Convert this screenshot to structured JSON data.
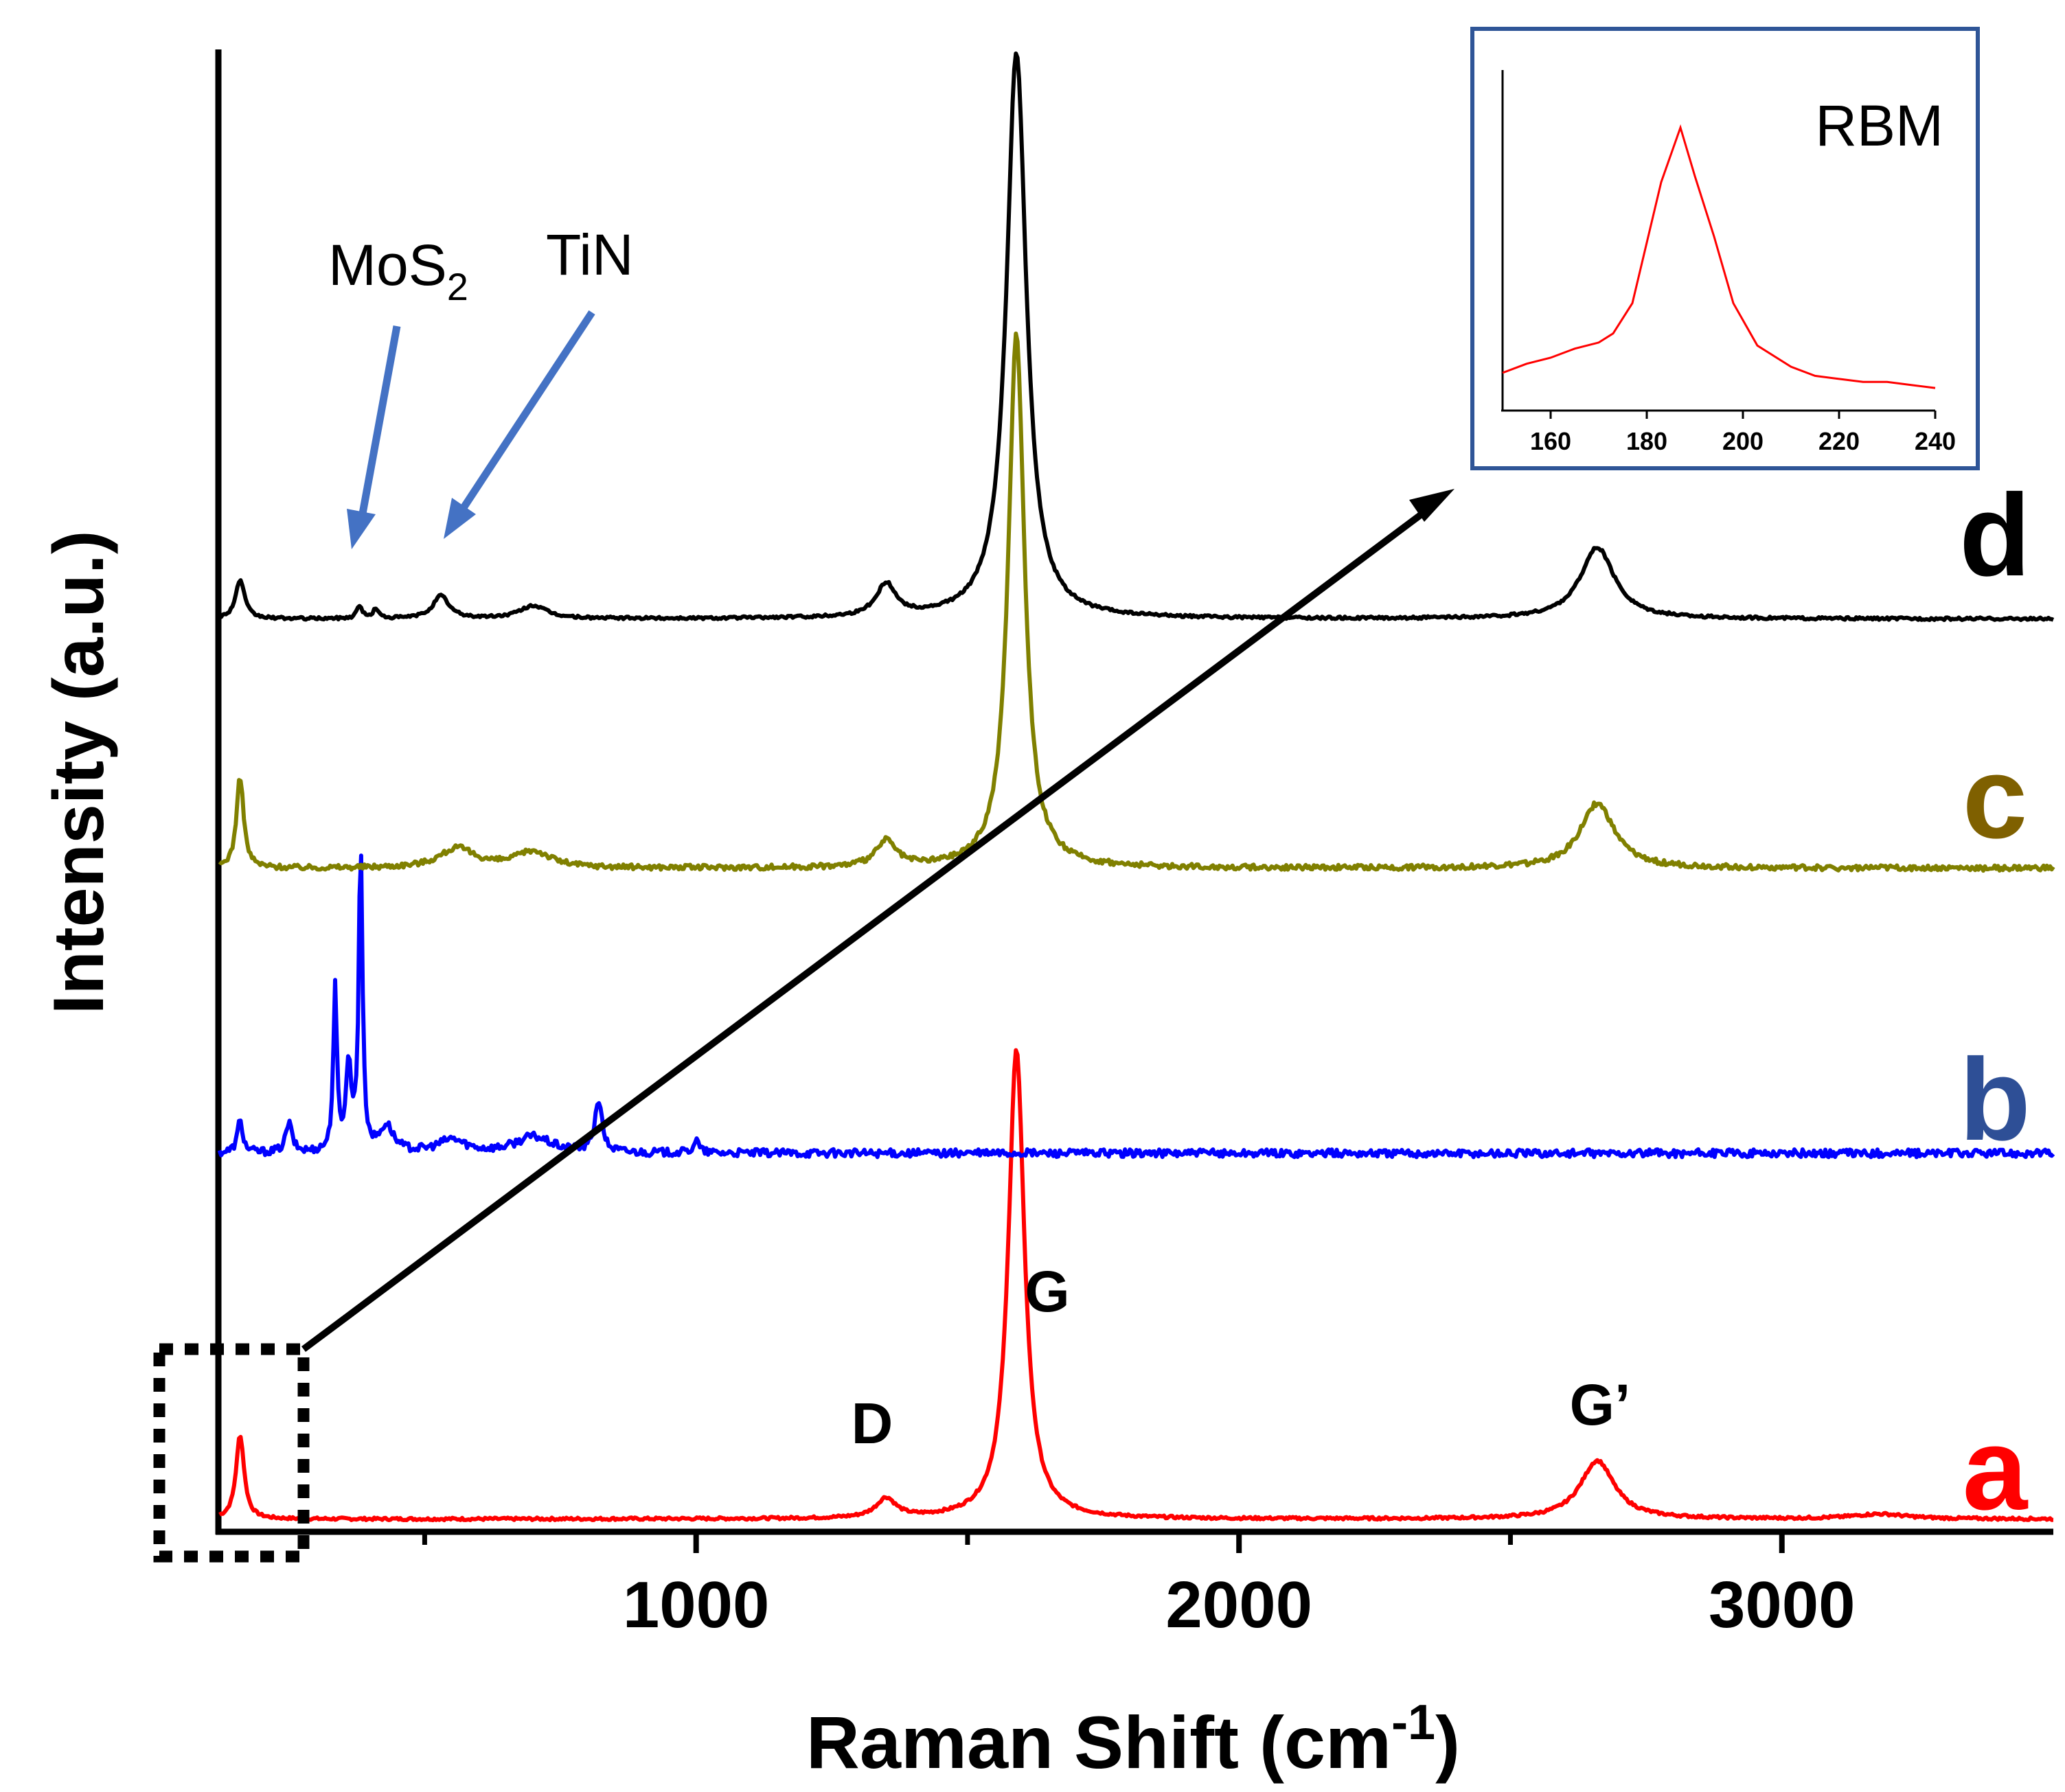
{
  "colors": {
    "a": "#ff0000",
    "b": "#0000ff",
    "c": "#808000",
    "d": "#000000",
    "label_a": "#ff0000",
    "label_b": "#2e4f96",
    "label_c": "#7f6000",
    "label_d": "#000000",
    "arrow": "#4472c4",
    "inset_border": "#2f5597",
    "inset_line": "#ff0000"
  },
  "chart_data": [
    {
      "type": "line",
      "xlabel": "Raman Shift (cm-1)",
      "xlabel_main": "Raman Shift (cm",
      "xlabel_sup": "-1",
      "xlabel_end": ")",
      "ylabel": "Intensity (a.u.)",
      "xlim": [
        120,
        3500
      ],
      "ylim": [
        0,
        4.5
      ],
      "xticks": [
        1000,
        2000,
        3000
      ],
      "xtick_labels": [
        "1000",
        "2000",
        "3000"
      ],
      "minor_xticks": [
        500,
        1500,
        2500
      ],
      "series": [
        {
          "name": "a",
          "label": "a",
          "offset": 0.0,
          "baseline": 0.02,
          "peaks": [
            {
              "x": 160,
              "h": 0.26,
              "w": 9
            },
            {
              "x": 1350,
              "h": 0.06,
              "w": 22
            },
            {
              "x": 1590,
              "h": 1.45,
              "w": 18
            },
            {
              "x": 2660,
              "h": 0.18,
              "w": 38
            },
            {
              "x": 3180,
              "h": 0.015,
              "w": 60
            }
          ],
          "noise": 0.004
        },
        {
          "name": "b",
          "label": "b",
          "offset": 1.15,
          "baseline": 0.0,
          "peaks": [
            {
              "x": 160,
              "h": 0.1,
              "w": 6
            },
            {
              "x": 250,
              "h": 0.09,
              "w": 7
            },
            {
              "x": 335,
              "h": 0.5,
              "w": 4
            },
            {
              "x": 360,
              "h": 0.26,
              "w": 6
            },
            {
              "x": 382,
              "h": 0.95,
              "w": 4
            },
            {
              "x": 430,
              "h": 0.08,
              "w": 15
            },
            {
              "x": 550,
              "h": 0.04,
              "w": 30
            },
            {
              "x": 700,
              "h": 0.05,
              "w": 40
            },
            {
              "x": 820,
              "h": 0.16,
              "w": 8
            },
            {
              "x": 1000,
              "h": 0.04,
              "w": 6
            }
          ],
          "noise": 0.012
        },
        {
          "name": "c",
          "label": "c",
          "offset": 2.03,
          "baseline": 0.0,
          "peaks": [
            {
              "x": 160,
              "h": 0.28,
              "w": 8
            },
            {
              "x": 560,
              "h": 0.06,
              "w": 40
            },
            {
              "x": 700,
              "h": 0.05,
              "w": 40
            },
            {
              "x": 1350,
              "h": 0.08,
              "w": 22
            },
            {
              "x": 1590,
              "h": 1.65,
              "w": 18
            },
            {
              "x": 2660,
              "h": 0.2,
              "w": 38
            }
          ],
          "noise": 0.008
        },
        {
          "name": "d",
          "label": "d",
          "offset": 2.8,
          "baseline": 0.0,
          "peaks": [
            {
              "x": 160,
              "h": 0.12,
              "w": 10
            },
            {
              "x": 380,
              "h": 0.04,
              "w": 6
            },
            {
              "x": 410,
              "h": 0.03,
              "w": 6
            },
            {
              "x": 530,
              "h": 0.07,
              "w": 18
            },
            {
              "x": 700,
              "h": 0.04,
              "w": 30
            },
            {
              "x": 1350,
              "h": 0.1,
              "w": 22
            },
            {
              "x": 1590,
              "h": 1.75,
              "w": 22
            },
            {
              "x": 2660,
              "h": 0.22,
              "w": 38
            }
          ],
          "noise": 0.004
        }
      ],
      "annotations": {
        "D": "D",
        "G": "G",
        "Gprime": "G’",
        "mos2_main": "MoS",
        "mos2_sub": "2",
        "tin": "TiN"
      }
    },
    {
      "type": "line",
      "title": "RBM",
      "xlim": [
        150,
        240
      ],
      "ylim": [
        0,
        1
      ],
      "xticks": [
        160,
        180,
        200,
        220,
        240
      ],
      "xtick_labels": [
        "160",
        "180",
        "200",
        "220",
        "240"
      ],
      "x": [
        150,
        155,
        160,
        165,
        170,
        173,
        177,
        180,
        183,
        187,
        190,
        194,
        198,
        203,
        210,
        215,
        220,
        225,
        230,
        235,
        240
      ],
      "y": [
        0.17,
        0.2,
        0.22,
        0.25,
        0.27,
        0.3,
        0.4,
        0.6,
        0.8,
        0.98,
        0.82,
        0.62,
        0.4,
        0.26,
        0.19,
        0.16,
        0.15,
        0.14,
        0.14,
        0.13,
        0.12
      ]
    }
  ]
}
